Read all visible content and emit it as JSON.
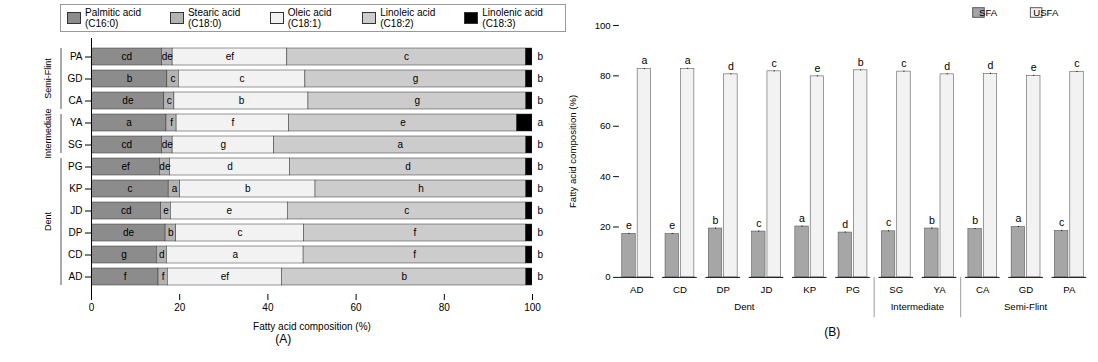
{
  "chart_data": [
    {
      "type": "bar",
      "orientation": "horizontal",
      "stacked": true,
      "title": "(A)",
      "x_label": "Fatty acid composition (%)",
      "categories": [
        "AD",
        "CD",
        "DP",
        "JD",
        "KP",
        "PG",
        "SG",
        "YA",
        "CA",
        "GD",
        "PA"
      ],
      "groups": [
        {
          "name": "Dent",
          "categories": [
            "AD",
            "CD",
            "DP",
            "JD",
            "KP",
            "PG"
          ]
        },
        {
          "name": "Intermediate",
          "categories": [
            "SG",
            "YA"
          ]
        },
        {
          "name": "Semi-Flint",
          "categories": [
            "CA",
            "GD",
            "PA"
          ]
        }
      ],
      "series": [
        {
          "name": "Palmitic acid (C16:0)",
          "color": "#8c8c8c",
          "values": [
            15.2,
            14.8,
            16.8,
            15.8,
            17.5,
            15.5,
            16.0,
            17.0,
            16.5,
            17.2,
            16.0
          ],
          "letters": [
            "f",
            "g",
            "de",
            "cd",
            "c",
            "ef",
            "cd",
            "a",
            "de",
            "b",
            "cd"
          ]
        },
        {
          "name": "Stearic  acid (C18:0)",
          "color": "#b3b3b3",
          "values": [
            2.1,
            2.3,
            2.4,
            2.2,
            2.6,
            2.3,
            2.4,
            2.3,
            2.3,
            2.6,
            2.4
          ],
          "letters": [
            "f",
            "d",
            "b",
            "e",
            "a",
            "de",
            "de",
            "f",
            "c",
            "c",
            "de"
          ]
        },
        {
          "name": "Oleic acid (C18:1)",
          "color": "#f2f2f2",
          "values": [
            25.9,
            31.0,
            29.0,
            26.5,
            30.7,
            27.2,
            23.0,
            25.5,
            30.4,
            28.7,
            26.0
          ],
          "letters": [
            "ef",
            "a",
            "c",
            "e",
            "b",
            "d",
            "g",
            "f",
            "b",
            "c",
            "ef"
          ]
        },
        {
          "name": "Linoleic acid (C18:2)",
          "color": "#cccccc",
          "values": [
            55.4,
            50.4,
            50.3,
            54.0,
            47.8,
            53.5,
            57.2,
            51.7,
            49.4,
            50.0,
            54.1
          ],
          "letters": [
            "b",
            "f",
            "f",
            "c",
            "h",
            "d",
            "a",
            "e",
            "g",
            "g",
            "c"
          ]
        },
        {
          "name": "Linolenic acid (C18:3)",
          "color": "#000000",
          "values": [
            1.4,
            1.5,
            1.5,
            1.5,
            1.4,
            1.5,
            1.4,
            3.5,
            1.4,
            1.5,
            1.5
          ],
          "letters": [
            "b",
            "b",
            "b",
            "b",
            "b",
            "b",
            "b",
            "a",
            "b",
            "b",
            "b"
          ]
        }
      ],
      "xlim": [
        0,
        100
      ],
      "xticks": [
        0,
        20,
        40,
        60,
        80,
        100
      ],
      "grid": false,
      "legend": "top"
    },
    {
      "type": "bar",
      "title": "(B)",
      "y_label": "Fatty acid composition (%)",
      "categories": [
        "AD",
        "CD",
        "DP",
        "JD",
        "KP",
        "PG",
        "SG",
        "YA",
        "CA",
        "GD",
        "PA"
      ],
      "groups": [
        {
          "name": "Dent",
          "categories": [
            "AD",
            "CD",
            "DP",
            "JD",
            "KP",
            "PG"
          ]
        },
        {
          "name": "Intermediate",
          "categories": [
            "SG",
            "YA"
          ]
        },
        {
          "name": "Semi-Flint",
          "categories": [
            "CA",
            "GD",
            "PA"
          ]
        }
      ],
      "series": [
        {
          "name": "SFA",
          "color": "#a6a6a6",
          "values": [
            17.3,
            17.2,
            19.4,
            18.2,
            20.2,
            17.8,
            18.3,
            19.4,
            19.2,
            20.0,
            18.4
          ],
          "errors": [
            0.2,
            0.2,
            0.2,
            0.2,
            0.2,
            0.2,
            0.2,
            0.2,
            0.2,
            0.2,
            0.2
          ],
          "letters": [
            "e",
            "e",
            "b",
            "c",
            "a",
            "d",
            "c",
            "b",
            "b",
            "a",
            "c"
          ]
        },
        {
          "name": "USFA",
          "color": "#f2f2f2",
          "values": [
            82.7,
            82.8,
            80.6,
            81.8,
            79.8,
            82.2,
            81.7,
            80.6,
            80.8,
            80.0,
            81.6
          ],
          "errors": [
            0.2,
            0.2,
            0.2,
            0.2,
            0.2,
            0.2,
            0.2,
            0.2,
            0.2,
            0.2,
            0.2
          ],
          "letters": [
            "a",
            "a",
            "d",
            "c",
            "e",
            "b",
            "c",
            "d",
            "d",
            "e",
            "c"
          ]
        }
      ],
      "ylim": [
        0,
        100
      ],
      "yticks": [
        0,
        20,
        40,
        60,
        80,
        100
      ],
      "grid": false,
      "legend": "top-right"
    }
  ]
}
